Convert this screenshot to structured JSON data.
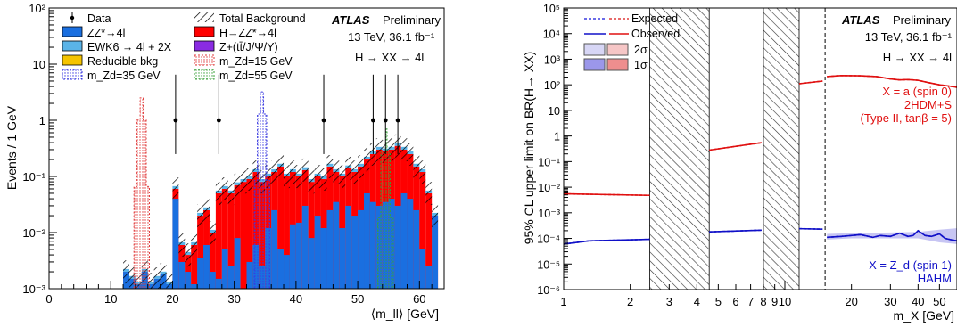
{
  "chart_data": [
    {
      "type": "bar",
      "panel": "left",
      "ylabel": "Events / 1 GeV",
      "xlabel": "⟨m_ll⟩ [GeV]",
      "y_scale": "log",
      "ylim": [
        0.001,
        100
      ],
      "xlim": [
        0,
        64
      ],
      "x_ticks": [
        0,
        10,
        20,
        30,
        40,
        50,
        60
      ],
      "y_tick_labels": [
        "10⁻³",
        "10⁻²",
        "10⁻¹",
        "1",
        "10",
        "10²"
      ],
      "atlas_label": "ATLAS",
      "atlas_sub": "Preliminary",
      "energy_lumi": "13 TeV, 36.1 fb⁻¹",
      "process": "H → XX → 4l",
      "legend": [
        {
          "label": "Data",
          "kind": "marker",
          "color": "#000000"
        },
        {
          "label": "Total Background",
          "kind": "hatch",
          "color": "#000000"
        },
        {
          "label": "ZZ*→4l",
          "kind": "box",
          "color": "#1a6fe0"
        },
        {
          "label": "H→ZZ*→4l",
          "kind": "box",
          "color": "#ff0000"
        },
        {
          "label": "EWK6 → 4l + 2X",
          "kind": "box",
          "color": "#5ab4e8"
        },
        {
          "label": "Z+(tt̄/J/Ψ/Υ)",
          "kind": "box",
          "color": "#8a2be2"
        },
        {
          "label": "Reducible bkg",
          "kind": "box",
          "color": "#f5c400"
        },
        {
          "label": "m_Zd=15 GeV",
          "kind": "dotted",
          "color": "#e03a3a"
        },
        {
          "label": "m_Zd=35 GeV",
          "kind": "dotted",
          "color": "#3a3ae0"
        },
        {
          "label": "m_Zd=55 GeV",
          "kind": "dotted",
          "color": "#3aa03a"
        }
      ],
      "data_points": [
        {
          "x": 20.5,
          "y": 1
        },
        {
          "x": 27.5,
          "y": 1
        },
        {
          "x": 44.5,
          "y": 1
        },
        {
          "x": 52.5,
          "y": 1
        },
        {
          "x": 54.5,
          "y": 1
        },
        {
          "x": 56.5,
          "y": 1
        }
      ],
      "bins": {
        "x_start": 12,
        "width": 1,
        "zz": [
          0.002,
          0.0015,
          0.0012,
          0.002,
          0.0012,
          0.0015,
          0.0018,
          0.0012,
          0.04,
          0.003,
          0.002,
          0.0012,
          0.0035,
          0.006,
          0.002,
          0.0015,
          0.005,
          0.0025,
          0.008,
          0.001,
          0.003,
          0.006,
          0.0025,
          0.012,
          0.025,
          0.005,
          0.004,
          0.014,
          0.015,
          0.03,
          0.008,
          0.02,
          0.012,
          0.025,
          0.035,
          0.012,
          0.03,
          0.02,
          0.025,
          0.05,
          0.035,
          0.03,
          0.035,
          0.04,
          0.03,
          0.05,
          0.04,
          0.025,
          0.005,
          0.0025,
          0.02
        ],
        "total": [
          0.002,
          0.0015,
          0.0012,
          0.002,
          0.0012,
          0.0015,
          0.0018,
          0.0012,
          0.06,
          0.006,
          0.004,
          0.006,
          0.02,
          0.025,
          0.01,
          0.05,
          0.06,
          0.05,
          0.07,
          0.08,
          0.09,
          0.12,
          0.08,
          0.1,
          0.12,
          0.15,
          0.1,
          0.12,
          0.1,
          0.13,
          0.08,
          0.1,
          0.09,
          0.15,
          0.12,
          0.1,
          0.14,
          0.12,
          0.15,
          0.2,
          0.25,
          0.3,
          0.28,
          0.3,
          0.35,
          0.3,
          0.25,
          0.15,
          0.12,
          0.05,
          0.02
        ]
      },
      "signals": [
        {
          "name": "m_Zd=15 GeV",
          "center": 15,
          "peak": 2.5,
          "color": "#e03a3a"
        },
        {
          "name": "m_Zd=35 GeV",
          "center": 34.5,
          "peak": 3.2,
          "color": "#3a3ae0"
        },
        {
          "name": "m_Zd=55 GeV",
          "center": 54.5,
          "peak": 0.7,
          "color": "#3aa03a"
        }
      ]
    },
    {
      "type": "line",
      "panel": "right",
      "ylabel": "95% CL upper limit on BR(H→ XX)",
      "xlabel": "m_X [GeV]",
      "x_scale": "log",
      "y_scale": "log",
      "xlim": [
        1,
        60
      ],
      "ylim": [
        1e-06,
        100000
      ],
      "x_ticks": [
        1,
        2,
        3,
        4,
        5,
        6,
        7,
        8,
        9,
        10,
        20,
        30,
        40,
        50
      ],
      "y_tick_labels": [
        "10⁻⁶",
        "10⁻⁵",
        "10⁻⁴",
        "10⁻³",
        "10⁻²",
        "10⁻¹",
        "1",
        "10",
        "10²",
        "10³",
        "10⁴",
        "10⁵"
      ],
      "atlas_label": "ATLAS",
      "atlas_sub": "Preliminary",
      "energy_lumi": "13 TeV, 36.1 fb⁻¹",
      "process": "H → XX → 4l",
      "legend": [
        {
          "label": "Expected",
          "kind": "dashed"
        },
        {
          "label": "Observed",
          "kind": "solid"
        },
        {
          "label": "2σ",
          "kind": "bands"
        },
        {
          "label": "1σ",
          "kind": "bands"
        }
      ],
      "vetoed_regions": [
        [
          2.45,
          4.55
        ],
        [
          8.0,
          11.6
        ]
      ],
      "dashed_vline": 15.2,
      "red_label": [
        "X = a (spin 0)",
        "2HDM+S",
        "(Type II, tanβ = 5)"
      ],
      "blue_label": [
        "X = Z_d (spin 1)",
        "HAHM"
      ],
      "red_color": "#e01010",
      "blue_color": "#1010c8",
      "red_segments": [
        {
          "x": [
            1,
            2.45
          ],
          "y": [
            0.0055,
            0.0048
          ]
        },
        {
          "x": [
            4.55,
            7.85
          ],
          "y": [
            0.28,
            0.55
          ]
        },
        {
          "x": [
            11.6,
            14.8
          ],
          "y": [
            110,
            140
          ]
        },
        {
          "x": [
            15.5,
            18,
            22,
            26,
            30,
            33,
            36,
            40,
            45,
            50,
            55,
            60
          ],
          "y": [
            210,
            230,
            225,
            210,
            170,
            155,
            160,
            150,
            120,
            100,
            90,
            80
          ]
        }
      ],
      "blue_segments": [
        {
          "x": [
            1,
            1.3,
            2.45
          ],
          "y": [
            6e-05,
            8e-05,
            9.2e-05
          ]
        },
        {
          "x": [
            4.55,
            7.85
          ],
          "y": [
            0.00018,
            0.00021
          ]
        },
        {
          "x": [
            11.6,
            14.8
          ],
          "y": [
            0.00024,
            0.00023
          ]
        },
        {
          "x": [
            15.5,
            18,
            22,
            25,
            27,
            30,
            33,
            36,
            38,
            40,
            43,
            46,
            50,
            53,
            56,
            60
          ],
          "y": [
            0.00011,
            0.00012,
            0.00014,
            0.00011,
            0.00013,
            0.00012,
            0.00016,
            0.00012,
            0.00013,
            0.0002,
            0.00013,
            0.00012,
            0.00015,
            0.0001,
            9e-05,
            8e-05
          ]
        }
      ],
      "blue_band_segment": {
        "x": [
          15.5,
          20,
          30,
          40,
          50,
          60
        ],
        "lo": [
          9e-05,
          0.0001,
          0.0001,
          0.0001,
          7e-05,
          6e-05
        ],
        "hi": [
          0.00015,
          0.00016,
          0.00017,
          0.00018,
          0.00022,
          0.00025
        ]
      }
    }
  ]
}
